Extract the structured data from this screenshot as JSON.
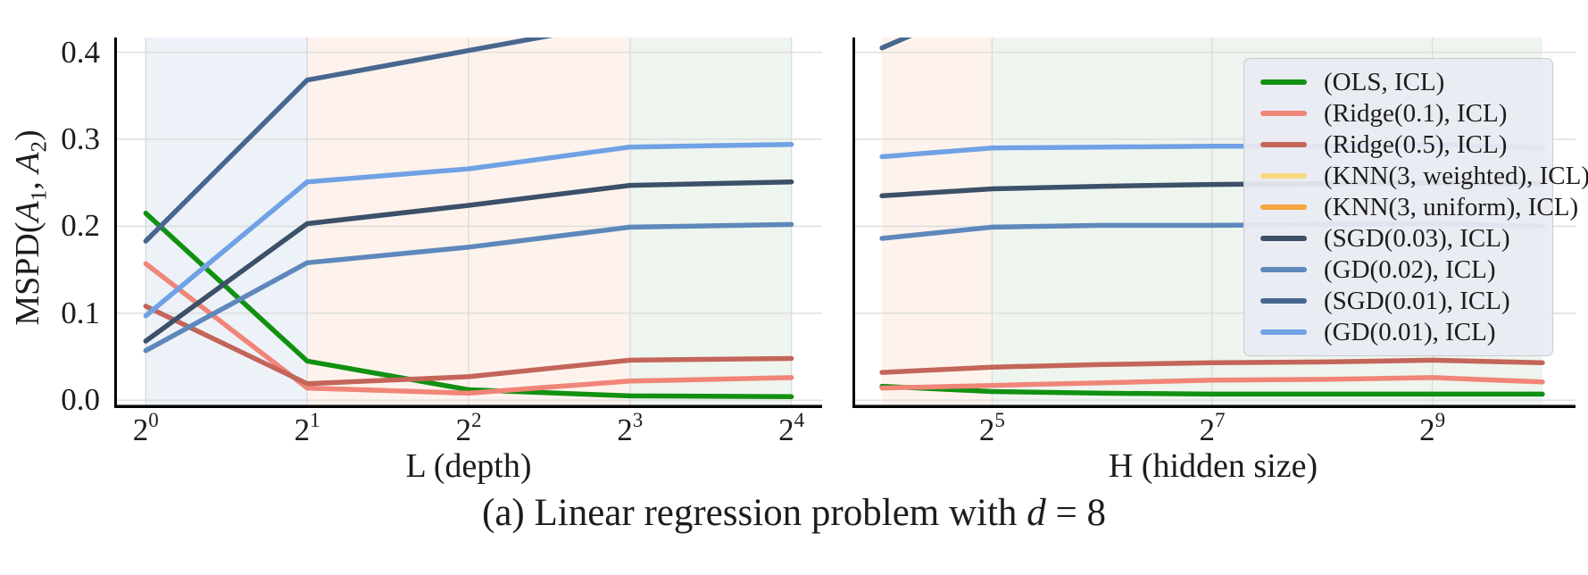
{
  "figure": {
    "caption": {
      "prefix": "(a) Linear regression problem with ",
      "variable": "d",
      "suffix": " = 8"
    }
  },
  "yaxis": {
    "label": {
      "prefix": "MSPD(",
      "var1": "A",
      "sub1": "1",
      "sep": ", ",
      "var2": "A",
      "sub2": "2",
      "suffix": ")"
    },
    "ticks": [
      "0.0",
      "0.1",
      "0.2",
      "0.3",
      "0.4"
    ],
    "tick_values": [
      0,
      0.1,
      0.2,
      0.3,
      0.4
    ]
  },
  "plots": {
    "left": {
      "xlabel": "L (depth)",
      "xticks": [
        {
          "base": "2",
          "exp": "0"
        },
        {
          "base": "2",
          "exp": "1"
        },
        {
          "base": "2",
          "exp": "2"
        },
        {
          "base": "2",
          "exp": "3"
        },
        {
          "base": "2",
          "exp": "4"
        }
      ]
    },
    "right": {
      "xlabel": "H (hidden size)",
      "xticks": [
        {
          "base": "2",
          "exp": "5"
        },
        {
          "base": "2",
          "exp": "7"
        },
        {
          "base": "2",
          "exp": "9"
        }
      ]
    }
  },
  "legend": {
    "entries": [
      {
        "label": "(OLS, ICL)",
        "color": "#119111"
      },
      {
        "label": "(Ridge(0.1), ICL)",
        "color": "#f08578"
      },
      {
        "label": "(Ridge(0.5), ICL)",
        "color": "#c4655a"
      },
      {
        "label": "(KNN(3, weighted), ICL)",
        "color": "#f9d97f"
      },
      {
        "label": "(KNN(3, uniform), ICL)",
        "color": "#f7a63d"
      },
      {
        "label": "(SGD(0.03), ICL)",
        "color": "#3c5069"
      },
      {
        "label": "(GD(0.02), ICL)",
        "color": "#5e88bb"
      },
      {
        "label": "(SGD(0.01), ICL)",
        "color": "#48678f"
      },
      {
        "label": "(GD(0.01), ICL)",
        "color": "#70a1e5"
      }
    ]
  },
  "style": {
    "grid_color": "#dcdcdc",
    "spine_color": "#000000",
    "text_color": "#1c1c1c",
    "band_blue": "#edf2f8",
    "band_peach": "#fdf3ec",
    "band_green": "#eef5ee",
    "legend_bg": "rgba(234,235,243,0.93)"
  },
  "chart_data": [
    {
      "type": "line",
      "panel": "left",
      "title": "",
      "xlabel": "L (depth)",
      "ylabel": "MSPD(A1, A2)",
      "x_scale": "log2",
      "x": [
        1,
        2,
        4,
        8,
        16
      ],
      "xtick_labels": [
        "2^0",
        "2^1",
        "2^2",
        "2^3",
        "2^4"
      ],
      "xticks_log2": [
        0,
        1,
        2,
        3,
        4
      ],
      "xlim_log2": [
        -0.195,
        4.19
      ],
      "ytick_labels": [
        "0.0",
        "0.1",
        "0.2",
        "0.3",
        "0.4"
      ],
      "ylim": [
        -0.009,
        0.417
      ],
      "grid": true,
      "bands": [
        {
          "from_log2": 0,
          "to_log2": 1,
          "color": "#edf2f8"
        },
        {
          "from_log2": 1,
          "to_log2": 3,
          "color": "#fdf3ec"
        },
        {
          "from_log2": 3,
          "to_log2": 4,
          "color": "#eef5ee"
        }
      ],
      "series": [
        {
          "name": "(OLS, ICL)",
          "color": "#119111",
          "values": [
            0.215,
            0.045,
            0.012,
            0.005,
            0.004
          ]
        },
        {
          "name": "(Ridge(0.1), ICL)",
          "color": "#f08578",
          "values": [
            0.157,
            0.014,
            0.008,
            0.022,
            0.026
          ]
        },
        {
          "name": "(Ridge(0.5), ICL)",
          "color": "#c4655a",
          "values": [
            0.108,
            0.019,
            0.027,
            0.046,
            0.048
          ]
        },
        {
          "name": "(SGD(0.03), ICL)",
          "color": "#3c5069",
          "values": [
            0.068,
            0.203,
            0.224,
            0.247,
            0.251
          ]
        },
        {
          "name": "(GD(0.02), ICL)",
          "color": "#5e88bb",
          "values": [
            0.057,
            0.158,
            0.176,
            0.199,
            0.202
          ]
        },
        {
          "name": "(SGD(0.01), ICL)",
          "color": "#48678f",
          "values": [
            0.183,
            0.368,
            0.402,
            0.436,
            0.45
          ],
          "clipped_above_axis": true
        },
        {
          "name": "(GD(0.01), ICL)",
          "color": "#70a1e5",
          "values": [
            0.097,
            0.251,
            0.266,
            0.291,
            0.294
          ]
        }
      ],
      "hidden_series_note": "(KNN(3, weighted), ICL) and (KNN(3, uniform), ICL) appear in legend only; their curves are not visible within the axis range"
    },
    {
      "type": "line",
      "panel": "right",
      "title": "",
      "xlabel": "H (hidden size)",
      "ylabel": "MSPD(A1, A2)",
      "x_scale": "log2",
      "x": [
        16,
        32,
        64,
        128,
        256,
        512,
        1024
      ],
      "xtick_labels": [
        "2^5",
        "2^7",
        "2^9"
      ],
      "xticks_log2": [
        5,
        7,
        9
      ],
      "xlim_log2": [
        3.732,
        10.3
      ],
      "ytick_labels": [
        "0.0",
        "0.1",
        "0.2",
        "0.3",
        "0.4"
      ],
      "ylim": [
        -0.009,
        0.417
      ],
      "grid": true,
      "bands": [
        {
          "from_log2": 4,
          "to_log2": 5,
          "color": "#fdf3ec"
        },
        {
          "from_log2": 5,
          "to_log2": 10,
          "color": "#eef5ee"
        }
      ],
      "series": [
        {
          "name": "(OLS, ICL)",
          "color": "#119111",
          "values": [
            0.016,
            0.01,
            0.008,
            0.007,
            0.007,
            0.007,
            0.007
          ]
        },
        {
          "name": "(Ridge(0.1), ICL)",
          "color": "#f08578",
          "values": [
            0.014,
            0.017,
            0.02,
            0.023,
            0.024,
            0.026,
            0.021
          ]
        },
        {
          "name": "(Ridge(0.5), ICL)",
          "color": "#c4655a",
          "values": [
            0.032,
            0.038,
            0.041,
            0.043,
            0.044,
            0.046,
            0.043
          ]
        },
        {
          "name": "(SGD(0.03), ICL)",
          "color": "#3c5069",
          "values": [
            0.235,
            0.243,
            0.246,
            0.248,
            0.249,
            0.25,
            0.249
          ]
        },
        {
          "name": "(GD(0.02), ICL)",
          "color": "#5e88bb",
          "values": [
            0.186,
            0.199,
            0.201,
            0.201,
            0.202,
            0.203,
            0.2
          ]
        },
        {
          "name": "(SGD(0.01), ICL)",
          "color": "#48678f",
          "values": [
            0.405,
            0.46,
            null,
            null,
            null,
            null,
            null
          ],
          "clipped_above_axis": true
        },
        {
          "name": "(GD(0.01), ICL)",
          "color": "#70a1e5",
          "values": [
            0.28,
            0.29,
            0.291,
            0.292,
            0.292,
            0.294,
            0.29
          ]
        }
      ],
      "hidden_series_note": "(KNN(3, weighted), ICL) and (KNN(3, uniform), ICL) appear in legend only; their curves are not visible within the axis range"
    }
  ]
}
